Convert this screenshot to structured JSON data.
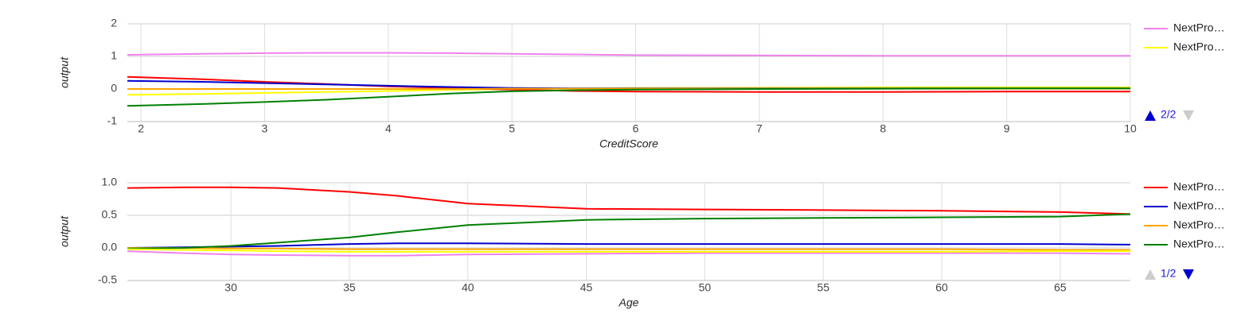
{
  "chart_data": [
    {
      "type": "line",
      "xlabel": "CreditScore",
      "ylabel": "output",
      "legend_page": "2/2",
      "x": [
        1.89,
        2.5,
        3,
        3.5,
        4,
        4.5,
        5,
        5.5,
        6,
        7,
        8,
        9,
        10
      ],
      "xlim": [
        1.89,
        10
      ],
      "xticks": [
        2,
        3,
        4,
        5,
        6,
        7,
        8,
        9,
        10
      ],
      "ylim": [
        -1,
        2
      ],
      "yticks": [
        -1,
        0,
        1,
        2
      ],
      "grid": true,
      "series": [
        {
          "name": "NextPro…",
          "color": "#ee82ee",
          "values": [
            1.05,
            1.08,
            1.1,
            1.11,
            1.11,
            1.1,
            1.08,
            1.06,
            1.04,
            1.03,
            1.02,
            1.02,
            1.02
          ]
        },
        {
          "name": "NextPro…",
          "color": "#ffff00",
          "values": [
            -0.18,
            -0.15,
            -0.12,
            -0.09,
            -0.06,
            -0.03,
            0,
            0.02,
            0.03,
            0.04,
            0.05,
            0.05,
            0.05
          ]
        },
        {
          "color": "#ff0000",
          "values": [
            0.37,
            0.3,
            0.22,
            0.15,
            0.08,
            0.03,
            -0.02,
            -0.06,
            -0.08,
            -0.09,
            -0.09,
            -0.08,
            -0.08
          ]
        },
        {
          "color": "#0000cc",
          "values": [
            0.25,
            0.22,
            0.18,
            0.14,
            0.1,
            0.06,
            0.03,
            0.02,
            0.02,
            0.02,
            0.02,
            0.02,
            0.02
          ]
        },
        {
          "color": "#ffa500",
          "values": [
            0,
            0,
            0,
            0,
            0,
            0,
            0.01,
            0.01,
            0.01,
            0.01,
            0.01,
            0.01,
            0.01
          ]
        },
        {
          "color": "#008000",
          "values": [
            -0.52,
            -0.46,
            -0.4,
            -0.33,
            -0.24,
            -0.14,
            -0.07,
            -0.04,
            -0.02,
            0,
            0.01,
            0.02,
            0.02
          ]
        }
      ]
    },
    {
      "type": "line",
      "xlabel": "Age",
      "ylabel": "output",
      "legend_page": "1/2",
      "x": [
        25.63,
        28,
        30,
        32,
        35,
        37,
        40,
        45,
        50,
        55,
        60,
        65,
        67.96
      ],
      "xlim": [
        25.63,
        67.96
      ],
      "xticks": [
        30,
        35,
        40,
        45,
        50,
        55,
        60,
        65
      ],
      "ylim": [
        -0.5,
        1
      ],
      "yticks": [
        -0.5,
        {
          "value": 0,
          "label": "0.0"
        },
        0.5,
        {
          "value": 1,
          "label": "1.0"
        }
      ],
      "grid": true,
      "series": [
        {
          "name": "NextPro…",
          "color": "#ff0000",
          "values": [
            0.92,
            0.93,
            0.93,
            0.92,
            0.86,
            0.8,
            0.68,
            0.6,
            0.59,
            0.58,
            0.57,
            0.55,
            0.52
          ]
        },
        {
          "name": "NextPro…",
          "color": "#0000cc",
          "values": [
            0,
            0.01,
            0.02,
            0.03,
            0.06,
            0.07,
            0.07,
            0.06,
            0.06,
            0.06,
            0.06,
            0.06,
            0.05
          ]
        },
        {
          "name": "NextPro…",
          "color": "#ffa500",
          "values": [
            0,
            0,
            -0.01,
            -0.01,
            -0.02,
            -0.02,
            -0.02,
            -0.02,
            -0.02,
            -0.02,
            -0.02,
            -0.03,
            -0.03
          ]
        },
        {
          "name": "NextPro…",
          "color": "#008000",
          "values": [
            -0.01,
            0,
            0.03,
            0.08,
            0.16,
            0.24,
            0.35,
            0.43,
            0.45,
            0.46,
            0.47,
            0.48,
            0.52
          ]
        },
        {
          "color": "#ee82ee",
          "values": [
            -0.05,
            -0.08,
            -0.1,
            -0.11,
            -0.12,
            -0.12,
            -0.1,
            -0.09,
            -0.08,
            -0.08,
            -0.08,
            -0.08,
            -0.09
          ]
        },
        {
          "color": "#ffff00",
          "values": [
            -0.02,
            -0.03,
            -0.04,
            -0.05,
            -0.06,
            -0.06,
            -0.06,
            -0.06,
            -0.06,
            -0.06,
            -0.06,
            -0.05,
            -0.05
          ]
        }
      ]
    }
  ]
}
